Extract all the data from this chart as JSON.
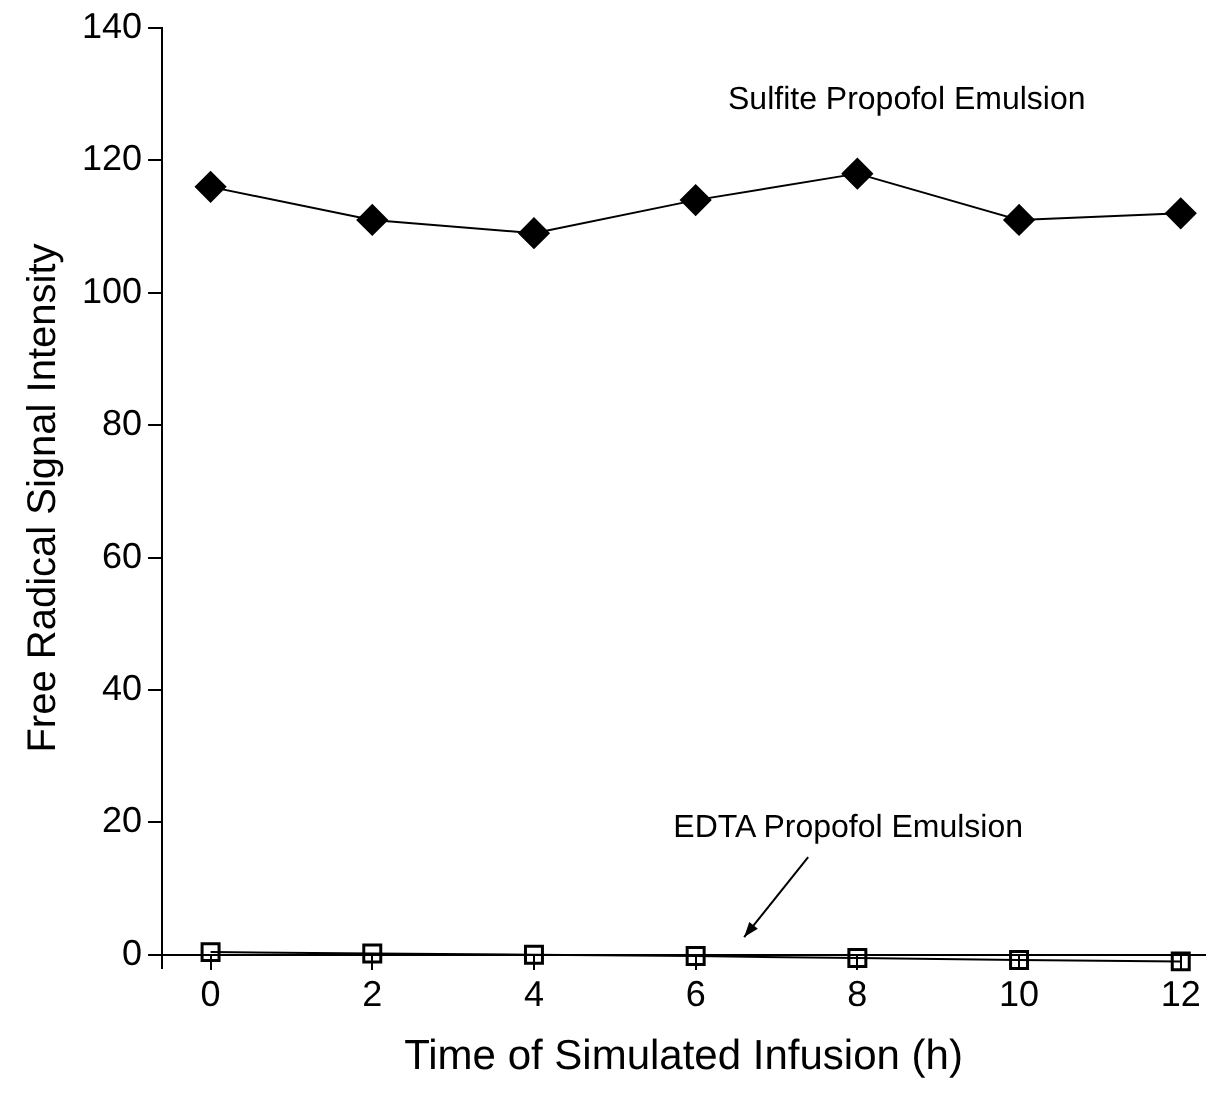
{
  "chart_data": {
    "type": "line",
    "xlabel": "Time of Simulated Infusion (h)",
    "ylabel": "Free Radical Signal Intensity",
    "x": [
      0,
      2,
      4,
      6,
      8,
      10,
      12
    ],
    "series": [
      {
        "name": "Sulfite Propofol Emulsion",
        "color": "#000000",
        "marker": "diamond",
        "values": [
          116,
          111,
          109,
          114,
          118,
          111,
          112
        ]
      },
      {
        "name": "EDTA Propofol Emulsion",
        "color": "#000000",
        "marker": "square",
        "values": [
          0.4,
          0.2,
          0,
          -0.2,
          -0.5,
          -0.8,
          -1
        ]
      }
    ],
    "xlim": [
      -0.6,
      12.3
    ],
    "xticks": [
      0,
      2,
      4,
      6,
      8,
      10,
      12
    ],
    "ylim": [
      -2,
      140
    ],
    "yticks": [
      0,
      20,
      40,
      60,
      80,
      100,
      120,
      140
    ],
    "grid": false,
    "legend": false
  }
}
